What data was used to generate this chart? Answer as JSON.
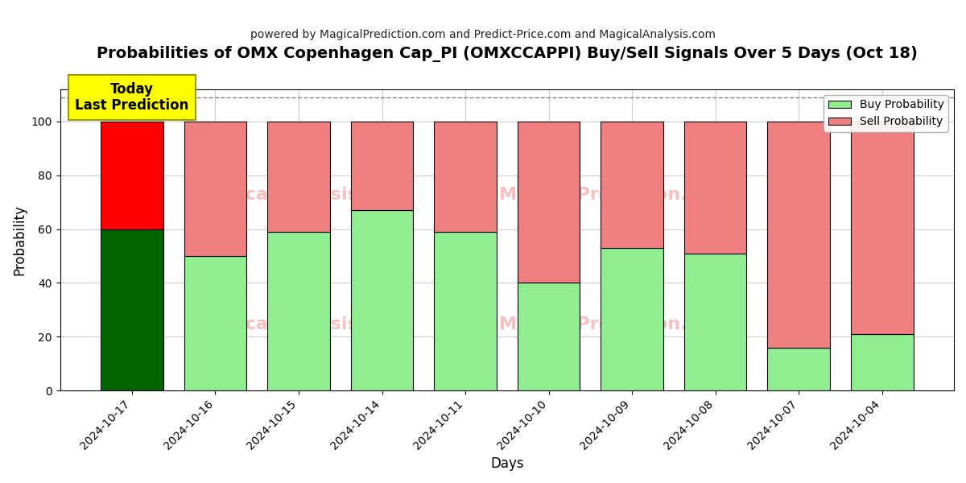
{
  "title": "Probabilities of OMX Copenhagen Cap_PI (OMXCCAPPI) Buy/Sell Signals Over 5 Days (Oct 18)",
  "subtitle": "powered by MagicalPrediction.com and Predict-Price.com and MagicalAnalysis.com",
  "xlabel": "Days",
  "ylabel": "Probability",
  "days": [
    "2024-10-17",
    "2024-10-16",
    "2024-10-15",
    "2024-10-14",
    "2024-10-11",
    "2024-10-10",
    "2024-10-09",
    "2024-10-08",
    "2024-10-07",
    "2024-10-04"
  ],
  "buy_values": [
    60,
    50,
    59,
    67,
    59,
    40,
    53,
    51,
    16,
    21
  ],
  "sell_values": [
    40,
    50,
    41,
    33,
    41,
    60,
    47,
    49,
    84,
    79
  ],
  "buy_color_today": "#006400",
  "sell_color_today": "#ff0000",
  "buy_color_normal": "#90EE90",
  "sell_color_normal": "#f08080",
  "bar_edge_color": "#000000",
  "today_label": "Today\nLast Prediction",
  "today_label_bg": "#ffff00",
  "legend_buy": "Buy Probability",
  "legend_sell": "Sell Probability",
  "ylim": [
    0,
    112
  ],
  "yticks": [
    0,
    20,
    40,
    60,
    80,
    100
  ],
  "dashed_line_y": 109,
  "background_color": "#ffffff",
  "grid_color": "#cccccc"
}
